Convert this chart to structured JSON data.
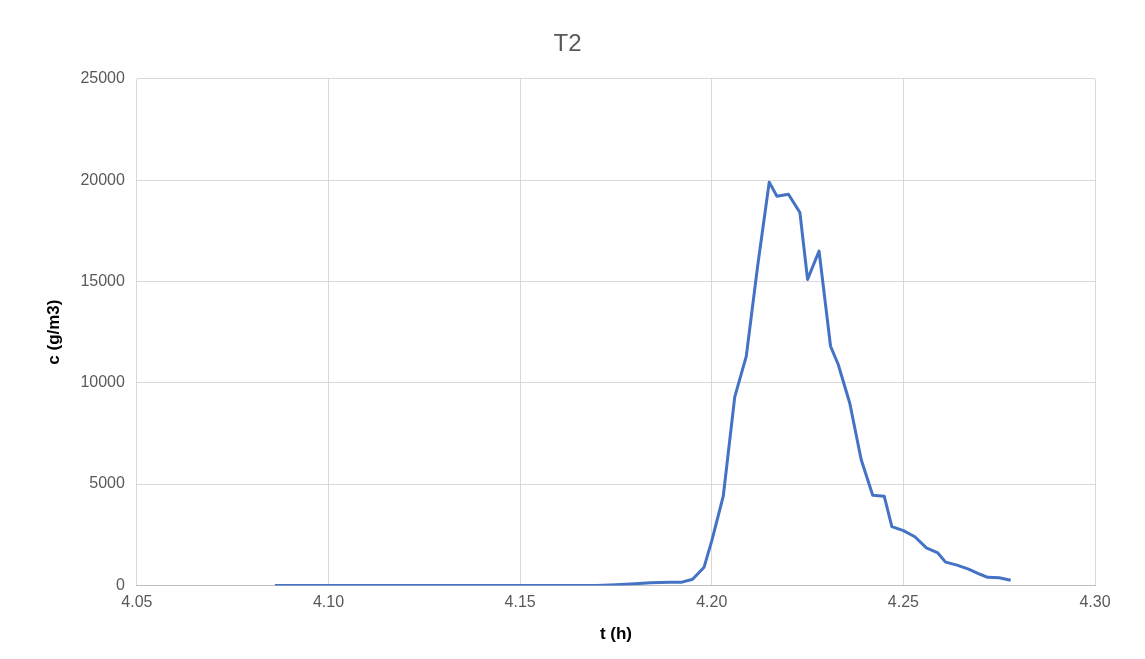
{
  "chart_data": {
    "type": "line",
    "title": "T2",
    "xlabel": "t (h)",
    "ylabel": "c (g/m3)",
    "x": [
      4.086,
      4.17,
      4.175,
      4.18,
      4.184,
      4.189,
      4.192,
      4.195,
      4.198,
      4.2,
      4.203,
      4.206,
      4.209,
      4.212,
      4.215,
      4.217,
      4.22,
      4.223,
      4.225,
      4.228,
      4.231,
      4.233,
      4.236,
      4.239,
      4.242,
      4.245,
      4.247,
      4.25,
      4.253,
      4.256,
      4.259,
      4.261,
      4.264,
      4.267,
      4.27,
      4.272,
      4.275,
      4.278
    ],
    "series": [
      {
        "color": "#4472c4",
        "values": [
          0,
          0,
          30,
          80,
          130,
          150,
          150,
          300,
          900,
          2200,
          4400,
          9300,
          11300,
          15800,
          19900,
          19200,
          19300,
          18400,
          15100,
          16500,
          11800,
          10900,
          9000,
          6200,
          4450,
          4400,
          2900,
          2700,
          2400,
          1850,
          1600,
          1150,
          1000,
          800,
          550,
          400,
          380,
          250
        ]
      }
    ],
    "xlim": [
      4.05,
      4.3
    ],
    "xticks": [
      {
        "value": 4.05,
        "label": "4.05"
      },
      {
        "value": 4.1,
        "label": "4.10"
      },
      {
        "value": 4.15,
        "label": "4.15"
      },
      {
        "value": 4.2,
        "label": "4.20"
      },
      {
        "value": 4.25,
        "label": "4.25"
      },
      {
        "value": 4.3,
        "label": "4.30"
      }
    ],
    "ylim": [
      0,
      25000
    ],
    "yticks": [
      0,
      5000,
      10000,
      15000,
      20000,
      25000
    ],
    "grid": true,
    "legend": false,
    "marker": "none",
    "line_style": "solid"
  }
}
